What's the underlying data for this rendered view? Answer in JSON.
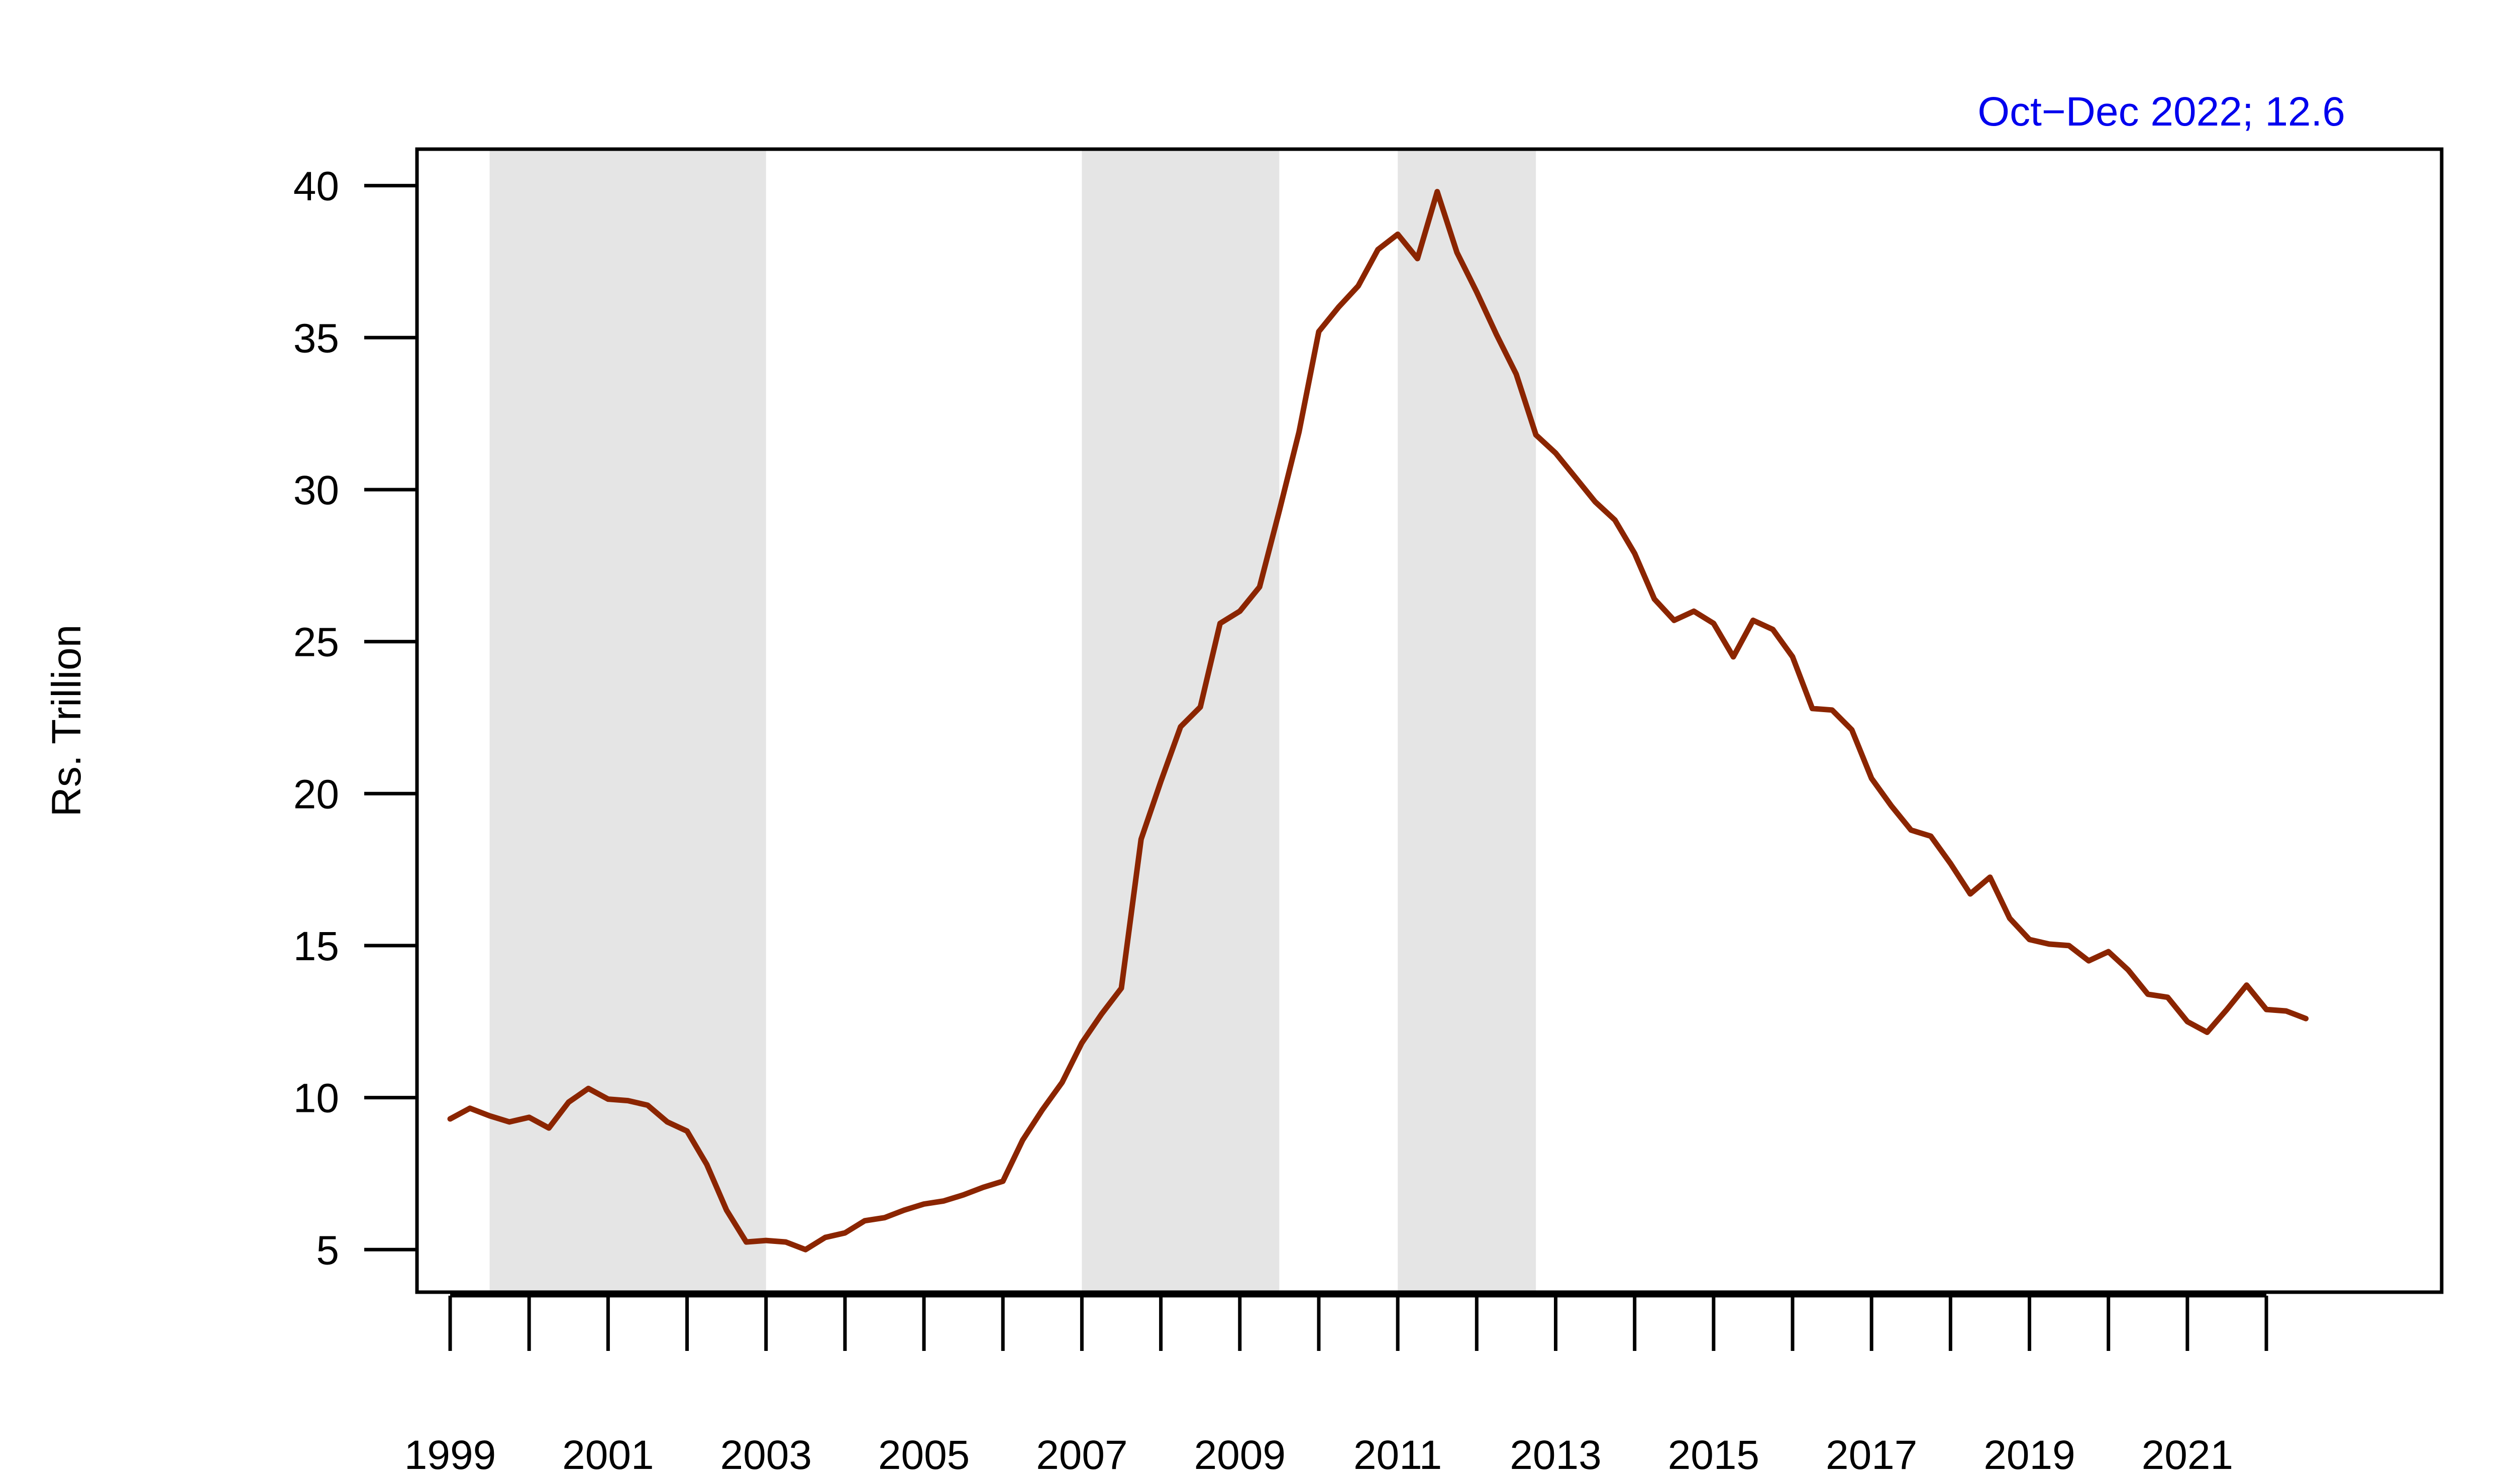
{
  "chart_data": {
    "type": "line",
    "title": "",
    "xlabel": "",
    "ylabel": "Rs. Trillion",
    "annotation": "Oct−Dec 2022; 12.6",
    "colors": {
      "line": "#8B2500",
      "shading": "#e5e5e5",
      "annotation": "#0000ee",
      "axes": "#000000"
    },
    "xlim": [
      1998.58,
      2024.22
    ],
    "ylim": [
      3.6,
      41.2
    ],
    "grid": false,
    "legend": "none",
    "x_ticks": [
      1999,
      2000,
      2001,
      2002,
      2003,
      2004,
      2005,
      2006,
      2007,
      2008,
      2009,
      2010,
      2011,
      2012,
      2013,
      2014,
      2015,
      2016,
      2017,
      2018,
      2019,
      2020,
      2021,
      2022
    ],
    "x_tick_labels": [
      "1999",
      "2001",
      "2003",
      "2005",
      "2007",
      "2009",
      "2011",
      "2013",
      "2015",
      "2017",
      "2019",
      "2021"
    ],
    "y_ticks": [
      5,
      10,
      15,
      20,
      25,
      30,
      35,
      40
    ],
    "y_tick_labels": [
      "5",
      "10",
      "15",
      "20",
      "25",
      "30",
      "35",
      "40"
    ],
    "shaded_periods": [
      [
        1999.5,
        2003.0
      ],
      [
        2007.0,
        2009.5
      ],
      [
        2011.0,
        2012.75
      ]
    ],
    "series": [
      {
        "x": [
          1999.0,
          1999.25,
          1999.5,
          1999.75,
          2000.0,
          2000.25,
          2000.5,
          2000.75,
          2001.0,
          2001.25,
          2001.5,
          2001.75,
          2002.0,
          2002.25,
          2002.5,
          2002.75,
          2003.0,
          2003.25,
          2003.5,
          2003.75,
          2004.0,
          2004.25,
          2004.5,
          2004.75,
          2005.0,
          2005.25,
          2005.5,
          2005.75,
          2006.0,
          2006.25,
          2006.5,
          2006.75,
          2007.0,
          2007.25,
          2007.5,
          2007.75,
          2008.0,
          2008.25,
          2008.5,
          2008.75,
          2009.0,
          2009.25,
          2009.5,
          2009.75,
          2010.0,
          2010.25,
          2010.5,
          2010.75,
          2011.0,
          2011.25,
          2011.5,
          2011.75,
          2012.0,
          2012.25,
          2012.5,
          2012.75,
          2013.0,
          2013.25,
          2013.5,
          2013.75,
          2014.0,
          2014.25,
          2014.5,
          2014.75,
          2015.0,
          2015.25,
          2015.5,
          2015.75,
          2016.0,
          2016.25,
          2016.5,
          2016.75,
          2017.0,
          2017.25,
          2017.5,
          2017.75,
          2018.0,
          2018.25,
          2018.5,
          2018.75,
          2019.0,
          2019.25,
          2019.5,
          2019.75,
          2020.0,
          2020.25,
          2020.5,
          2020.75,
          2021.0,
          2021.25,
          2021.5,
          2021.75,
          2022.0,
          2022.25,
          2022.5
        ],
        "values": [
          9.3,
          9.65,
          9.4,
          9.2,
          9.35,
          9.0,
          9.85,
          10.3,
          9.95,
          9.9,
          9.75,
          9.2,
          8.9,
          7.8,
          6.3,
          5.25,
          5.3,
          5.25,
          5.0,
          5.4,
          5.55,
          5.95,
          6.05,
          6.3,
          6.5,
          6.6,
          6.8,
          7.05,
          7.25,
          8.6,
          9.6,
          10.5,
          11.8,
          12.75,
          13.6,
          18.5,
          20.4,
          22.2,
          22.85,
          25.6,
          26.0,
          26.8,
          29.3,
          31.9,
          35.2,
          36.0,
          36.7,
          37.9,
          38.4,
          37.6,
          39.8,
          37.8,
          36.5,
          35.1,
          33.8,
          31.8,
          31.2,
          30.4,
          29.6,
          29.0,
          27.9,
          26.4,
          25.7,
          26.0,
          25.6,
          24.5,
          25.7,
          25.4,
          24.5,
          22.8,
          22.75,
          22.1,
          20.5,
          19.6,
          18.8,
          18.6,
          17.7,
          16.7,
          17.25,
          15.9,
          15.2,
          15.05,
          15.0,
          14.5,
          14.8,
          14.2,
          13.4,
          13.3,
          12.5,
          12.15,
          12.9,
          13.7,
          12.9,
          12.85,
          12.6
        ]
      }
    ]
  }
}
